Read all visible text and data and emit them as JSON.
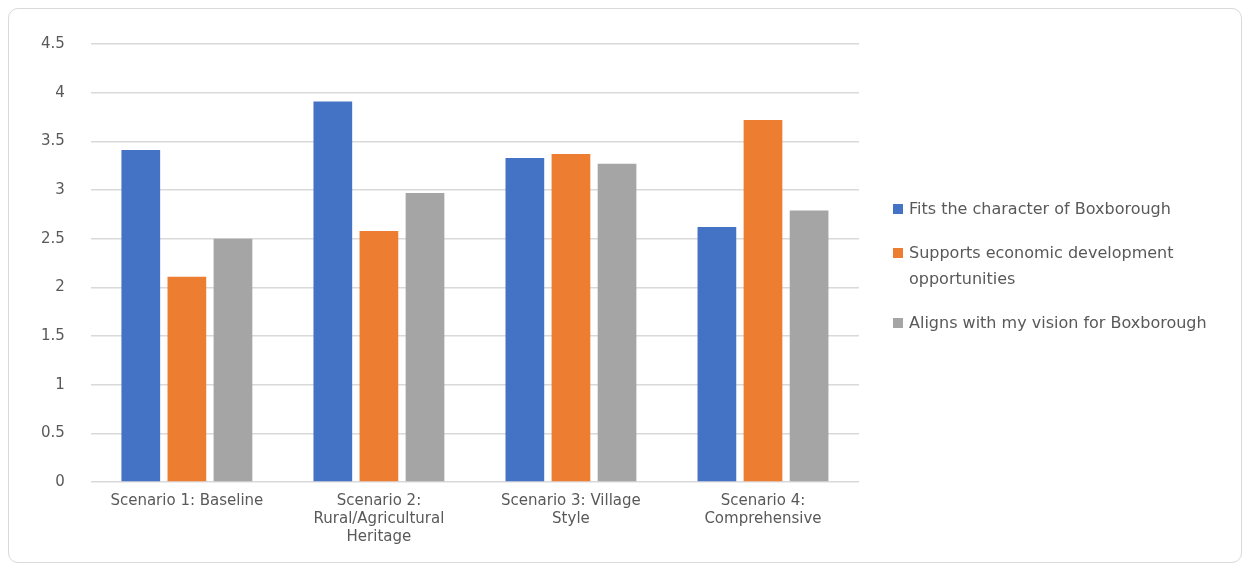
{
  "chart_data": {
    "type": "bar",
    "categories": [
      "Scenario 1: Baseline",
      "Scenario 2: Rural/Agricultural Heritage",
      "Scenario 3: Village Style",
      "Scenario 4: Comprehensive"
    ],
    "series": [
      {
        "name": "Fits the character of Boxborough",
        "color": "#4472c4",
        "values": [
          3.41,
          3.91,
          3.33,
          2.62
        ]
      },
      {
        "name": "Supports economic development opportunities",
        "color": "#ed7d31",
        "values": [
          2.11,
          2.58,
          3.37,
          3.72
        ]
      },
      {
        "name": "Aligns with my vision for Boxborough",
        "color": "#a5a5a5",
        "values": [
          2.5,
          2.97,
          3.27,
          2.79
        ]
      }
    ],
    "ylim": [
      0,
      4.5
    ],
    "yticks": [
      0,
      0.5,
      1,
      1.5,
      2,
      2.5,
      3,
      3.5,
      4,
      4.5
    ],
    "grid": "y",
    "legend": "right"
  }
}
